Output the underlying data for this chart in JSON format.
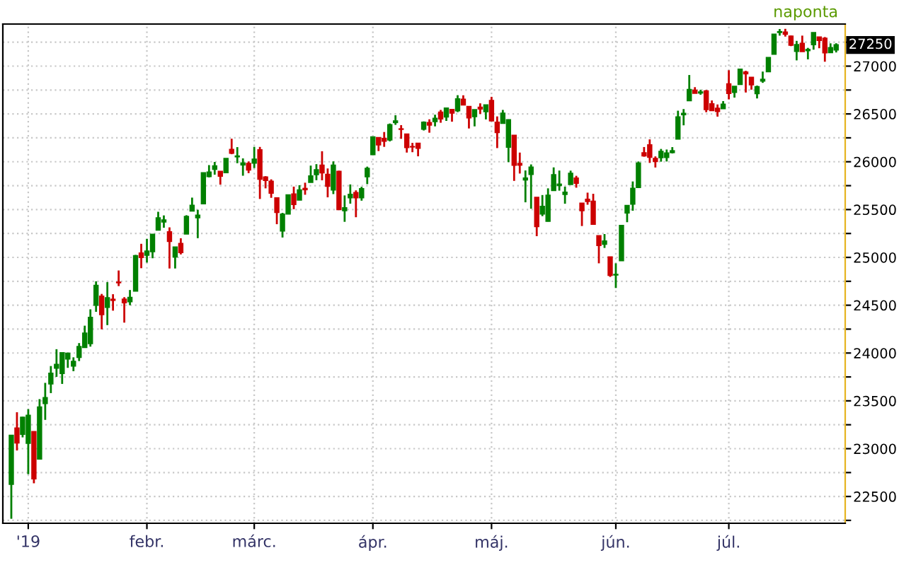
{
  "chart_data": {
    "type": "candlestick",
    "categories": [
      null,
      null,
      null,
      "'19",
      null,
      null,
      null,
      null,
      null,
      null,
      null,
      null,
      null,
      null,
      null,
      null,
      null,
      null,
      null,
      null,
      null,
      null,
      null,
      null,
      "febr.",
      null,
      null,
      null,
      null,
      null,
      null,
      null,
      null,
      null,
      null,
      null,
      null,
      null,
      null,
      null,
      null,
      null,
      null,
      "márc.",
      null,
      null,
      null,
      null,
      null,
      null,
      null,
      null,
      null,
      null,
      null,
      null,
      null,
      null,
      null,
      null,
      null,
      null,
      null,
      null,
      "ápr.",
      null,
      null,
      null,
      null,
      null,
      null,
      null,
      null,
      null,
      null,
      null,
      null,
      null,
      null,
      null,
      null,
      null,
      null,
      null,
      null,
      "máj.",
      null,
      null,
      null,
      null,
      null,
      null,
      null,
      null,
      null,
      null,
      null,
      null,
      null,
      null,
      null,
      null,
      null,
      null,
      null,
      null,
      null,
      "jún.",
      null,
      null,
      null,
      null,
      null,
      null,
      null,
      null,
      null,
      null,
      null,
      null,
      null,
      null,
      null,
      null,
      null,
      null,
      null,
      "júl.",
      null,
      null,
      null,
      null,
      null,
      null,
      null,
      null,
      null,
      null,
      null,
      null,
      null,
      null,
      null,
      null,
      null,
      null,
      null
    ],
    "ohlc": [
      [
        22629,
        23138,
        22267,
        23138
      ],
      [
        23213,
        23381,
        22981,
        23062
      ],
      [
        23153,
        23333,
        23118,
        23327
      ],
      [
        23058,
        23413,
        22733,
        23346
      ],
      [
        23176,
        23176,
        22638,
        22686
      ],
      [
        22894,
        23518,
        22894,
        23433
      ],
      [
        23474,
        23688,
        23301,
        23531
      ],
      [
        23680,
        23864,
        23581,
        23787
      ],
      [
        23844,
        24040,
        23751,
        23879
      ],
      [
        23788,
        24002,
        23677,
        24002
      ],
      [
        23940,
        24005,
        23845,
        23996
      ],
      [
        23866,
        23955,
        23810,
        23910
      ],
      [
        23957,
        24104,
        23916,
        24066
      ],
      [
        24060,
        24286,
        24060,
        24207
      ],
      [
        24101,
        24457,
        24067,
        24370
      ],
      [
        24501,
        24750,
        24431,
        24706
      ],
      [
        24592,
        24618,
        24248,
        24404
      ],
      [
        24480,
        24741,
        24292,
        24576
      ],
      [
        24560,
        24615,
        24443,
        24553
      ],
      [
        24739,
        24863,
        24700,
        24737
      ],
      [
        24561,
        24584,
        24318,
        24528
      ],
      [
        24538,
        24659,
        24500,
        24580
      ],
      [
        24649,
        25026,
        24649,
        25015
      ],
      [
        25044,
        25142,
        24887,
        25000
      ],
      [
        25025,
        25194,
        24946,
        25064
      ],
      [
        25062,
        25239,
        24991,
        25239
      ],
      [
        25287,
        25477,
        25287,
        25412
      ],
      [
        25372,
        25439,
        25310,
        25390
      ],
      [
        25265,
        25314,
        24884,
        25170
      ],
      [
        25006,
        25106,
        24884,
        25106
      ],
      [
        25144,
        25200,
        25031,
        25053
      ],
      [
        25246,
        25441,
        25246,
        25426
      ],
      [
        25487,
        25625,
        25487,
        25543
      ],
      [
        25416,
        25498,
        25201,
        25439
      ],
      [
        25563,
        25883,
        25563,
        25883
      ],
      [
        25848,
        25965,
        25837,
        25891
      ],
      [
        25924,
        25998,
        25865,
        25954
      ],
      [
        25898,
        25898,
        25761,
        25851
      ],
      [
        25889,
        26032,
        25889,
        26032
      ],
      [
        26126,
        26241,
        26079,
        26092
      ],
      [
        26054,
        26153,
        25985,
        26058
      ],
      [
        25969,
        26035,
        25854,
        25985
      ],
      [
        25981,
        26003,
        25881,
        25916
      ],
      [
        25988,
        26156,
        25934,
        26026
      ],
      [
        26123,
        26155,
        25611,
        25820
      ],
      [
        25838,
        25849,
        25722,
        25807
      ],
      [
        25794,
        25816,
        25623,
        25673
      ],
      [
        25621,
        25621,
        25347,
        25473
      ],
      [
        25279,
        25466,
        25208,
        25450
      ],
      [
        25455,
        25658,
        25455,
        25651
      ],
      [
        25661,
        25740,
        25504,
        25555
      ],
      [
        25601,
        25755,
        25601,
        25703
      ],
      [
        25719,
        25781,
        25655,
        25710
      ],
      [
        25786,
        25960,
        25786,
        25849
      ],
      [
        25868,
        25975,
        25807,
        25914
      ],
      [
        25962,
        26110,
        25806,
        25887
      ],
      [
        25867,
        25930,
        25628,
        25746
      ],
      [
        25707,
        26004,
        25662,
        25963
      ],
      [
        25897,
        25906,
        25501,
        25502
      ],
      [
        25490,
        25648,
        25372,
        25517
      ],
      [
        25625,
        25763,
        25562,
        25658
      ],
      [
        25676,
        25701,
        25420,
        25626
      ],
      [
        25625,
        25738,
        25593,
        25717
      ],
      [
        25845,
        25949,
        25766,
        25929
      ],
      [
        26076,
        26259,
        26076,
        26258
      ],
      [
        26250,
        26250,
        26112,
        26179
      ],
      [
        26242,
        26311,
        26156,
        26218
      ],
      [
        26230,
        26400,
        26213,
        26385
      ],
      [
        26412,
        26486,
        26386,
        26425
      ],
      [
        26342,
        26383,
        26240,
        26341
      ],
      [
        26287,
        26287,
        26096,
        26151
      ],
      [
        26157,
        26198,
        26100,
        26157
      ],
      [
        26191,
        26191,
        26057,
        26143
      ],
      [
        26343,
        26422,
        26327,
        26412
      ],
      [
        26407,
        26444,
        26304,
        26385
      ],
      [
        26422,
        26492,
        26370,
        26453
      ],
      [
        26517,
        26542,
        26408,
        26450
      ],
      [
        26471,
        26563,
        26427,
        26560
      ],
      [
        26545,
        26545,
        26419,
        26511
      ],
      [
        26536,
        26696,
        26519,
        26656
      ],
      [
        26652,
        26695,
        26597,
        26597
      ],
      [
        26576,
        26576,
        26348,
        26462
      ],
      [
        26474,
        26543,
        26370,
        26543
      ],
      [
        26568,
        26611,
        26500,
        26554
      ],
      [
        26526,
        26593,
        26443,
        26593
      ],
      [
        26639,
        26679,
        26424,
        26430
      ],
      [
        26412,
        26474,
        26143,
        26308
      ],
      [
        26404,
        26542,
        26404,
        26505
      ],
      [
        26154,
        26443,
        25996,
        26438
      ],
      [
        26275,
        26277,
        25800,
        25965
      ],
      [
        25980,
        26096,
        25877,
        25967
      ],
      [
        25812,
        25909,
        25576,
        25828
      ],
      [
        25869,
        25972,
        25509,
        25942
      ],
      [
        25625,
        25625,
        25222,
        25325
      ],
      [
        25456,
        25652,
        25431,
        25532
      ],
      [
        25380,
        25722,
        25375,
        25648
      ],
      [
        25701,
        25941,
        25695,
        25863
      ],
      [
        25753,
        25908,
        25698,
        25764
      ],
      [
        25661,
        25740,
        25561,
        25680
      ],
      [
        25764,
        25907,
        25764,
        25877
      ],
      [
        25828,
        25853,
        25729,
        25777
      ],
      [
        25565,
        25565,
        25328,
        25490
      ],
      [
        25605,
        25677,
        25551,
        25586
      ],
      [
        25585,
        25665,
        25340,
        25348
      ],
      [
        25224,
        25224,
        24938,
        25126
      ],
      [
        25139,
        25244,
        25099,
        25170
      ],
      [
        25003,
        25003,
        24796,
        24815
      ],
      [
        24818,
        24938,
        24680,
        24820
      ],
      [
        24967,
        25333,
        24967,
        25332
      ],
      [
        25467,
        25543,
        25368,
        25540
      ],
      [
        25559,
        25794,
        25488,
        25721
      ],
      [
        25733,
        26003,
        25733,
        25984
      ],
      [
        26092,
        26154,
        26053,
        26063
      ],
      [
        26175,
        26234,
        25988,
        26049
      ],
      [
        26033,
        26056,
        25940,
        26005
      ],
      [
        26045,
        26134,
        26001,
        26107
      ],
      [
        26047,
        26128,
        26003,
        26090
      ],
      [
        26098,
        26153,
        26087,
        26113
      ],
      [
        26239,
        26534,
        26239,
        26466
      ],
      [
        26494,
        26551,
        26381,
        26504
      ],
      [
        26640,
        26907,
        26640,
        26753
      ],
      [
        26746,
        26780,
        26717,
        26719
      ],
      [
        26721,
        26753,
        26701,
        26728
      ],
      [
        26738,
        26750,
        26518,
        26548
      ],
      [
        26603,
        26641,
        26534,
        26537
      ],
      [
        26558,
        26599,
        26472,
        26527
      ],
      [
        26558,
        26634,
        26558,
        26600
      ],
      [
        26812,
        26957,
        26652,
        26717
      ],
      [
        26728,
        26790,
        26671,
        26787
      ],
      [
        26811,
        26966,
        26811,
        26966
      ],
      [
        26936,
        26951,
        26724,
        26922
      ],
      [
        26881,
        26881,
        26754,
        26806
      ],
      [
        26714,
        26796,
        26662,
        26783
      ],
      [
        26846,
        26943,
        26825,
        26860
      ],
      [
        26943,
        27088,
        26943,
        27088
      ],
      [
        27126,
        27333,
        27126,
        27332
      ],
      [
        27354,
        27388,
        27319,
        27359
      ],
      [
        27354,
        27390,
        27309,
        27336
      ],
      [
        27311,
        27319,
        27209,
        27220
      ],
      [
        27157,
        27264,
        27060,
        27223
      ],
      [
        27235,
        27319,
        27154,
        27154
      ],
      [
        27164,
        27191,
        27071,
        27172
      ],
      [
        27227,
        27350,
        27172,
        27349
      ],
      [
        27302,
        27302,
        27187,
        27270
      ],
      [
        27289,
        27304,
        27046,
        27141
      ],
      [
        27144,
        27238,
        27144,
        27192
      ],
      [
        27171,
        27239,
        27143,
        27221
      ]
    ],
    "colors": [
      "#008000",
      "#cc0000",
      "#008000",
      "#008000",
      "#cc0000",
      "#008000",
      "#008000",
      "#008000",
      "#008000",
      "#008000",
      "#008000",
      "#008000",
      "#008000",
      "#008000",
      "#008000",
      "#008000",
      "#cc0000",
      "#008000",
      "#cc0000",
      "#cc0000",
      "#cc0000",
      "#008000",
      "#008000",
      "#cc0000",
      "#008000",
      "#008000",
      "#008000",
      "#008000",
      "#cc0000",
      "#008000",
      "#cc0000",
      "#008000",
      "#008000",
      "#008000",
      "#008000",
      "#008000",
      "#008000",
      "#cc0000",
      "#008000",
      "#cc0000",
      "#008000",
      "#008000",
      "#cc0000",
      "#008000",
      "#cc0000",
      "#cc0000",
      "#cc0000",
      "#cc0000",
      "#008000",
      "#008000",
      "#cc0000",
      "#008000",
      "#cc0000",
      "#008000",
      "#008000",
      "#cc0000",
      "#cc0000",
      "#008000",
      "#cc0000",
      "#008000",
      "#008000",
      "#cc0000",
      "#008000",
      "#008000",
      "#008000",
      "#cc0000",
      "#cc0000",
      "#008000",
      "#008000",
      "#cc0000",
      "#cc0000",
      "#cc0000",
      "#cc0000",
      "#008000",
      "#cc0000",
      "#008000",
      "#cc0000",
      "#008000",
      "#cc0000",
      "#008000",
      "#cc0000",
      "#cc0000",
      "#008000",
      "#cc0000",
      "#008000",
      "#cc0000",
      "#cc0000",
      "#008000",
      "#008000",
      "#cc0000",
      "#cc0000",
      "#008000",
      "#008000",
      "#cc0000",
      "#008000",
      "#008000",
      "#008000",
      "#008000",
      "#008000",
      "#008000",
      "#cc0000",
      "#cc0000",
      "#cc0000",
      "#cc0000",
      "#cc0000",
      "#008000",
      "#cc0000",
      "#008000",
      "#008000",
      "#008000",
      "#008000",
      "#008000",
      "#cc0000",
      "#cc0000",
      "#cc0000",
      "#008000",
      "#008000",
      "#008000",
      "#008000",
      "#008000",
      "#008000",
      "#cc0000",
      "#008000",
      "#cc0000",
      "#cc0000",
      "#cc0000",
      "#008000",
      "#cc0000",
      "#008000",
      "#008000",
      "#cc0000",
      "#cc0000",
      "#008000",
      "#008000",
      "#008000",
      "#008000",
      "#008000",
      "#cc0000",
      "#cc0000",
      "#008000",
      "#cc0000",
      "#008000",
      "#008000",
      "#cc0000",
      "#cc0000",
      "#008000",
      "#008000"
    ],
    "ylim": [
      22220,
      27440
    ],
    "yticks": [
      {
        "value": 22250,
        "label": null
      },
      22500,
      {
        "value": 22750,
        "label": null
      },
      23000,
      {
        "value": 23250,
        "label": null
      },
      23500,
      {
        "value": 23750,
        "label": null
      },
      24000,
      {
        "value": 24250,
        "label": null
      },
      24500,
      {
        "value": 24750,
        "label": null
      },
      25000,
      {
        "value": 25250,
        "label": null
      },
      25500,
      {
        "value": 25750,
        "label": null
      },
      26000,
      {
        "value": 26250,
        "label": null
      },
      26500,
      {
        "value": 26750,
        "label": null
      },
      27000,
      {
        "value": 27250,
        "label": null
      }
    ],
    "grid": true,
    "annotations": [
      "naponta",
      "27250"
    ]
  }
}
